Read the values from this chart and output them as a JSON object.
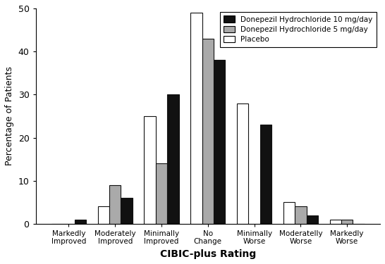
{
  "categories": [
    "Markedly\nImproved",
    "Moderately\nImproved",
    "Minimally\nImproved",
    "No\nChange",
    "Minimally\nWorse",
    "Moderatelly\nWorse",
    "Markedly\nWorse"
  ],
  "donepezil_10": [
    1,
    6,
    30,
    38,
    23,
    2,
    0
  ],
  "donepezil_5": [
    0,
    9,
    14,
    43,
    0,
    4,
    1
  ],
  "placebo": [
    0,
    4,
    25,
    49,
    28,
    5,
    1
  ],
  "bar_colors": {
    "donepezil_10": "#111111",
    "donepezil_5": "#aaaaaa",
    "placebo": "#ffffff"
  },
  "bar_edgecolor": "#111111",
  "legend_labels": [
    "Donepezil Hydrochloride 10 mg/day",
    "Donepezil Hydrochloride 5 mg/day",
    "Placebo"
  ],
  "ylabel": "Percentage of Patients",
  "xlabel": "CIBIC-plus Rating",
  "ylim": [
    0,
    50
  ],
  "yticks": [
    0,
    10,
    20,
    30,
    40,
    50
  ],
  "background_color": "#ffffff",
  "bar_width": 0.25,
  "figsize": [
    5.46,
    3.75
  ],
  "dpi": 100
}
